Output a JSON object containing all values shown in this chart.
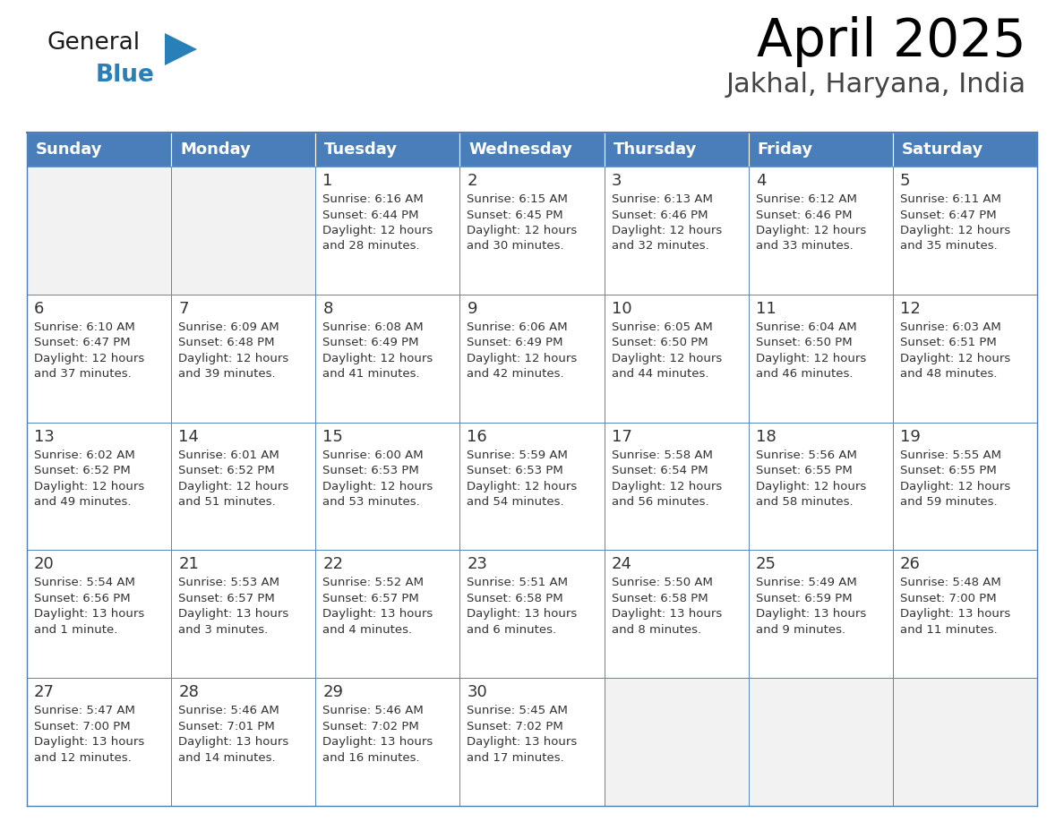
{
  "title": "April 2025",
  "subtitle": "Jakhal, Haryana, India",
  "header_bg": "#4a7ebb",
  "header_text": "#ffffff",
  "cell_bg": "#ffffff",
  "cell_bg_light": "#f2f2f2",
  "border_color": "#4a7ebb",
  "text_color": "#333333",
  "day_names": [
    "Sunday",
    "Monday",
    "Tuesday",
    "Wednesday",
    "Thursday",
    "Friday",
    "Saturday"
  ],
  "weeks": [
    [
      {
        "day": "",
        "sunrise": "",
        "sunset": "",
        "daylight": ""
      },
      {
        "day": "",
        "sunrise": "",
        "sunset": "",
        "daylight": ""
      },
      {
        "day": "1",
        "sunrise": "6:16 AM",
        "sunset": "6:44 PM",
        "daylight": "12 hours\nand 28 minutes."
      },
      {
        "day": "2",
        "sunrise": "6:15 AM",
        "sunset": "6:45 PM",
        "daylight": "12 hours\nand 30 minutes."
      },
      {
        "day": "3",
        "sunrise": "6:13 AM",
        "sunset": "6:46 PM",
        "daylight": "12 hours\nand 32 minutes."
      },
      {
        "day": "4",
        "sunrise": "6:12 AM",
        "sunset": "6:46 PM",
        "daylight": "12 hours\nand 33 minutes."
      },
      {
        "day": "5",
        "sunrise": "6:11 AM",
        "sunset": "6:47 PM",
        "daylight": "12 hours\nand 35 minutes."
      }
    ],
    [
      {
        "day": "6",
        "sunrise": "6:10 AM",
        "sunset": "6:47 PM",
        "daylight": "12 hours\nand 37 minutes."
      },
      {
        "day": "7",
        "sunrise": "6:09 AM",
        "sunset": "6:48 PM",
        "daylight": "12 hours\nand 39 minutes."
      },
      {
        "day": "8",
        "sunrise": "6:08 AM",
        "sunset": "6:49 PM",
        "daylight": "12 hours\nand 41 minutes."
      },
      {
        "day": "9",
        "sunrise": "6:06 AM",
        "sunset": "6:49 PM",
        "daylight": "12 hours\nand 42 minutes."
      },
      {
        "day": "10",
        "sunrise": "6:05 AM",
        "sunset": "6:50 PM",
        "daylight": "12 hours\nand 44 minutes."
      },
      {
        "day": "11",
        "sunrise": "6:04 AM",
        "sunset": "6:50 PM",
        "daylight": "12 hours\nand 46 minutes."
      },
      {
        "day": "12",
        "sunrise": "6:03 AM",
        "sunset": "6:51 PM",
        "daylight": "12 hours\nand 48 minutes."
      }
    ],
    [
      {
        "day": "13",
        "sunrise": "6:02 AM",
        "sunset": "6:52 PM",
        "daylight": "12 hours\nand 49 minutes."
      },
      {
        "day": "14",
        "sunrise": "6:01 AM",
        "sunset": "6:52 PM",
        "daylight": "12 hours\nand 51 minutes."
      },
      {
        "day": "15",
        "sunrise": "6:00 AM",
        "sunset": "6:53 PM",
        "daylight": "12 hours\nand 53 minutes."
      },
      {
        "day": "16",
        "sunrise": "5:59 AM",
        "sunset": "6:53 PM",
        "daylight": "12 hours\nand 54 minutes."
      },
      {
        "day": "17",
        "sunrise": "5:58 AM",
        "sunset": "6:54 PM",
        "daylight": "12 hours\nand 56 minutes."
      },
      {
        "day": "18",
        "sunrise": "5:56 AM",
        "sunset": "6:55 PM",
        "daylight": "12 hours\nand 58 minutes."
      },
      {
        "day": "19",
        "sunrise": "5:55 AM",
        "sunset": "6:55 PM",
        "daylight": "12 hours\nand 59 minutes."
      }
    ],
    [
      {
        "day": "20",
        "sunrise": "5:54 AM",
        "sunset": "6:56 PM",
        "daylight": "13 hours\nand 1 minute."
      },
      {
        "day": "21",
        "sunrise": "5:53 AM",
        "sunset": "6:57 PM",
        "daylight": "13 hours\nand 3 minutes."
      },
      {
        "day": "22",
        "sunrise": "5:52 AM",
        "sunset": "6:57 PM",
        "daylight": "13 hours\nand 4 minutes."
      },
      {
        "day": "23",
        "sunrise": "5:51 AM",
        "sunset": "6:58 PM",
        "daylight": "13 hours\nand 6 minutes."
      },
      {
        "day": "24",
        "sunrise": "5:50 AM",
        "sunset": "6:58 PM",
        "daylight": "13 hours\nand 8 minutes."
      },
      {
        "day": "25",
        "sunrise": "5:49 AM",
        "sunset": "6:59 PM",
        "daylight": "13 hours\nand 9 minutes."
      },
      {
        "day": "26",
        "sunrise": "5:48 AM",
        "sunset": "7:00 PM",
        "daylight": "13 hours\nand 11 minutes."
      }
    ],
    [
      {
        "day": "27",
        "sunrise": "5:47 AM",
        "sunset": "7:00 PM",
        "daylight": "13 hours\nand 12 minutes."
      },
      {
        "day": "28",
        "sunrise": "5:46 AM",
        "sunset": "7:01 PM",
        "daylight": "13 hours\nand 14 minutes."
      },
      {
        "day": "29",
        "sunrise": "5:46 AM",
        "sunset": "7:02 PM",
        "daylight": "13 hours\nand 16 minutes."
      },
      {
        "day": "30",
        "sunrise": "5:45 AM",
        "sunset": "7:02 PM",
        "daylight": "13 hours\nand 17 minutes."
      },
      {
        "day": "",
        "sunrise": "",
        "sunset": "",
        "daylight": ""
      },
      {
        "day": "",
        "sunrise": "",
        "sunset": "",
        "daylight": ""
      },
      {
        "day": "",
        "sunrise": "",
        "sunset": "",
        "daylight": ""
      }
    ]
  ],
  "logo_general_color": "#1a1a1a",
  "logo_blue_color": "#2980b9",
  "triangle_color": "#2980b9",
  "title_fontsize": 42,
  "subtitle_fontsize": 22,
  "dayname_fontsize": 13,
  "daynum_fontsize": 13,
  "cell_fontsize": 9.5
}
